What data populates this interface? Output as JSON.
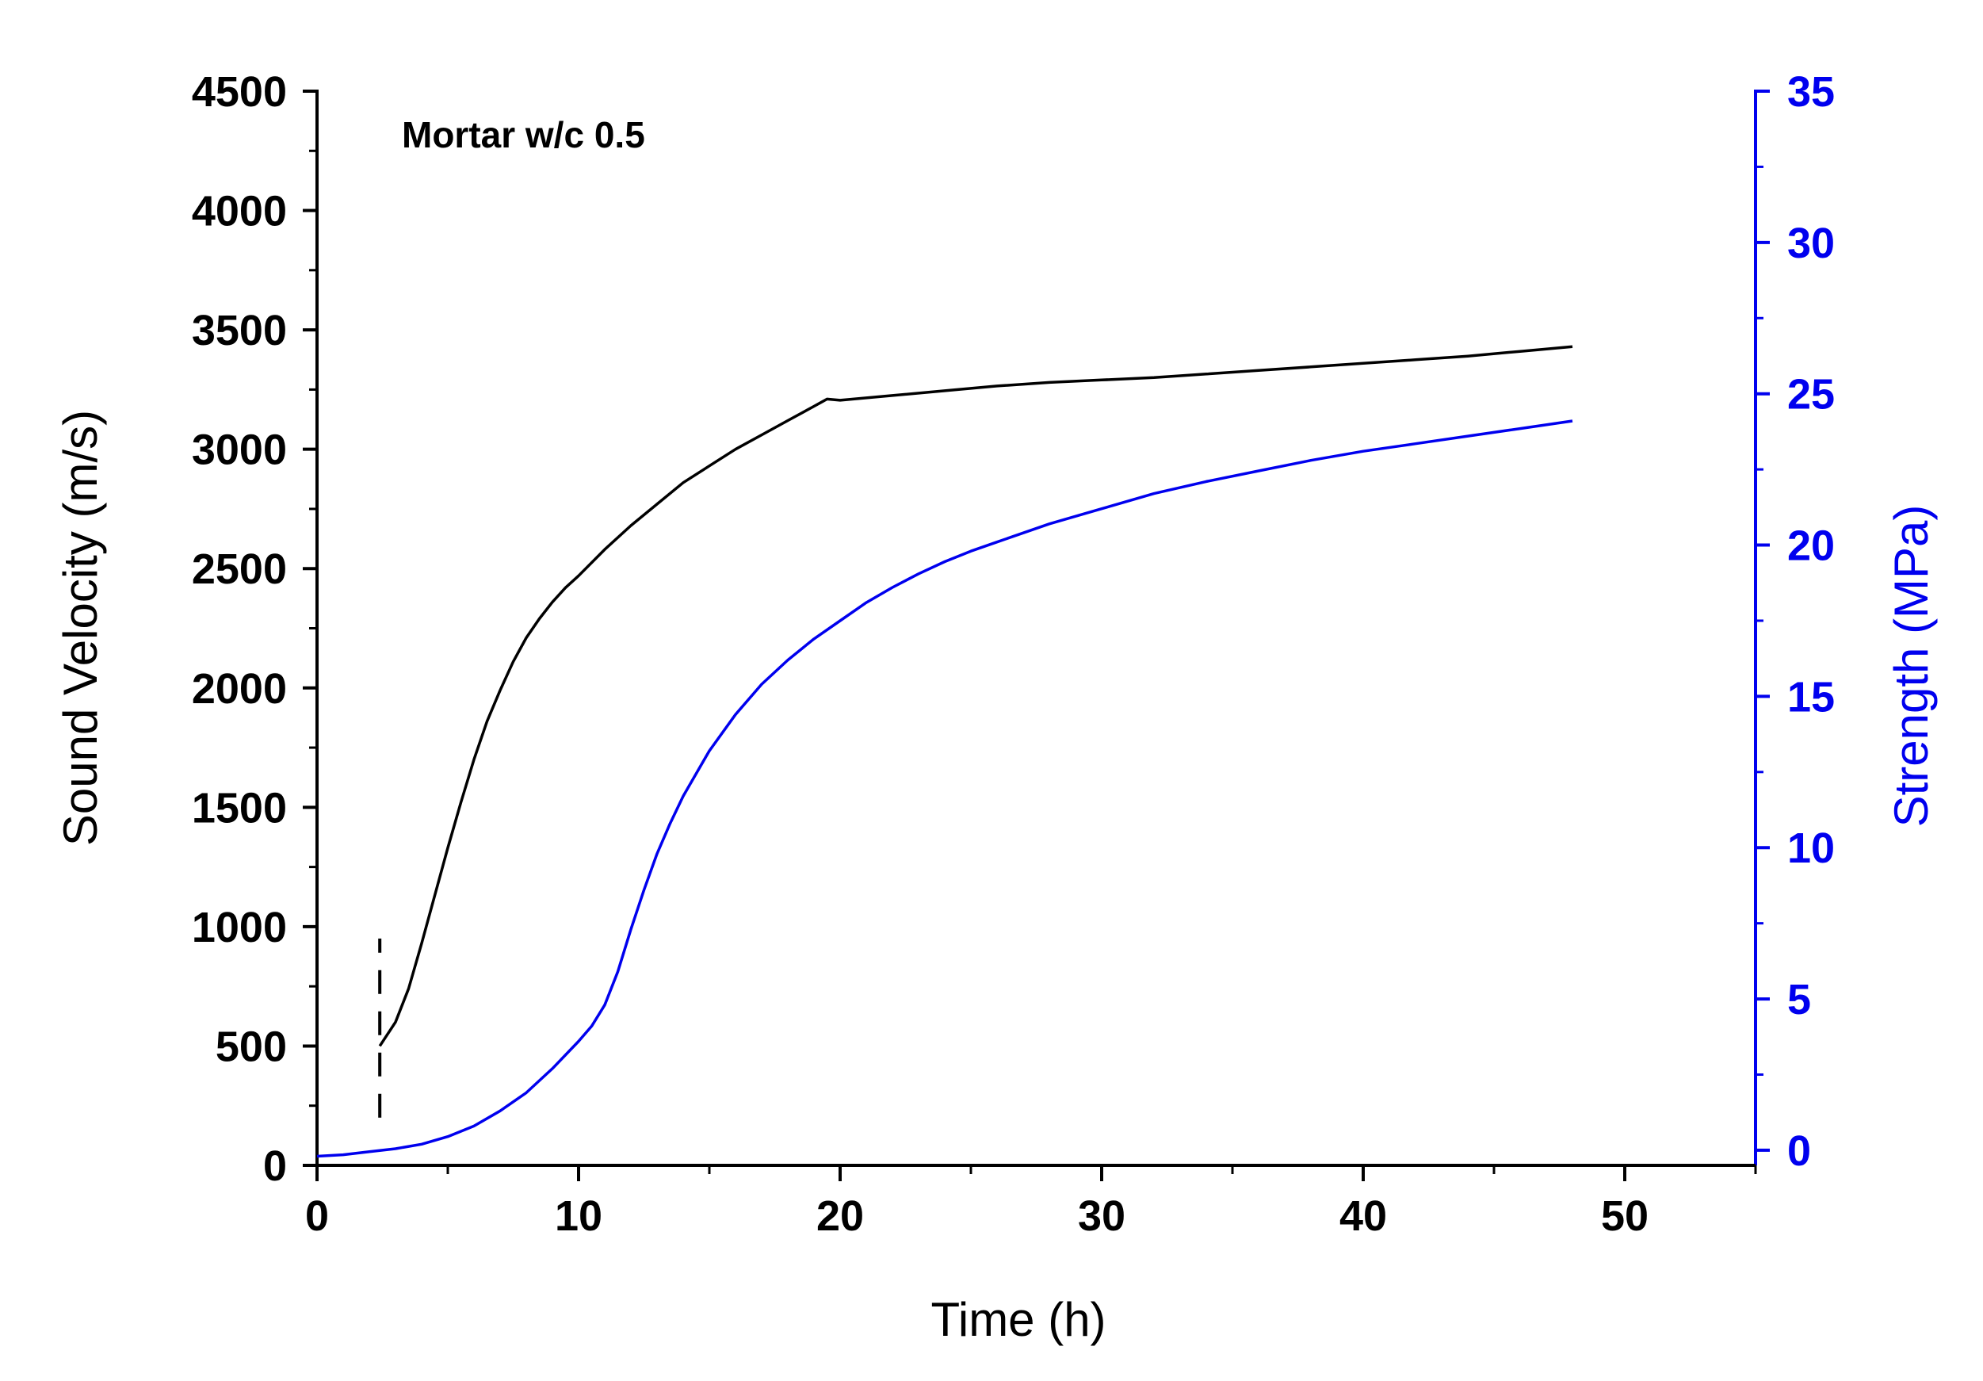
{
  "chart_data": {
    "type": "line",
    "title": "",
    "annotation": "Mortar w/c 0.5",
    "xlabel": "Time (h)",
    "ylabel": "Sound Velocity (m/s)",
    "y2label": "Strength (MPa)",
    "xlim": [
      0,
      55
    ],
    "ylim": [
      0,
      4500
    ],
    "y2lim": [
      -0.5,
      35
    ],
    "xticks": [
      0,
      10,
      20,
      30,
      40,
      50
    ],
    "xtick_labels": [
      "0",
      "10",
      "20",
      "30",
      "40",
      "50"
    ],
    "yticks": [
      0,
      500,
      1000,
      1500,
      2000,
      2500,
      3000,
      3500,
      4000,
      4500
    ],
    "ytick_labels": [
      "0",
      "500",
      "1000",
      "1500",
      "2000",
      "2500",
      "3000",
      "3500",
      "4000",
      "4500"
    ],
    "y2ticks": [
      0,
      5,
      10,
      15,
      20,
      25,
      30,
      35
    ],
    "y2tick_labels": [
      "0",
      "5",
      "10",
      "15",
      "20",
      "25",
      "30",
      "35"
    ],
    "grid": false,
    "series": [
      {
        "name": "Sound Velocity",
        "axis": "left",
        "color": "#000000",
        "x": [
          2.4,
          3.0,
          3.5,
          4.0,
          4.5,
          5.0,
          5.5,
          6.0,
          6.5,
          7.0,
          7.5,
          8.0,
          8.5,
          9.0,
          9.5,
          10.0,
          11.0,
          12.0,
          13.0,
          14.0,
          15.0,
          16.0,
          17.0,
          18.0,
          19.0,
          19.5,
          20.0,
          22.0,
          24.0,
          26.0,
          28.0,
          30.0,
          32.0,
          34.0,
          36.0,
          38.0,
          40.0,
          42.0,
          44.0,
          46.0,
          48.0
        ],
        "y": [
          500,
          600,
          740,
          930,
          1130,
          1330,
          1520,
          1700,
          1860,
          1990,
          2110,
          2210,
          2290,
          2360,
          2420,
          2470,
          2580,
          2680,
          2770,
          2860,
          2930,
          3000,
          3060,
          3120,
          3180,
          3210,
          3205,
          3225,
          3245,
          3265,
          3280,
          3290,
          3300,
          3315,
          3330,
          3345,
          3360,
          3375,
          3390,
          3410,
          3430
        ]
      },
      {
        "name": "Strength",
        "axis": "right",
        "color": "#0000ee",
        "x": [
          0,
          1,
          2,
          3,
          4,
          5,
          6,
          7,
          8,
          9,
          10,
          10.5,
          11,
          11.5,
          12,
          12.5,
          13,
          13.5,
          14,
          15,
          16,
          17,
          18,
          19,
          20,
          21,
          22,
          23,
          24,
          25,
          26,
          28,
          30,
          32,
          34,
          36,
          38,
          40,
          42,
          44,
          46,
          48
        ],
        "y": [
          -0.2,
          -0.15,
          -0.05,
          0.05,
          0.2,
          0.45,
          0.8,
          1.3,
          1.9,
          2.7,
          3.6,
          4.1,
          4.8,
          5.9,
          7.3,
          8.6,
          9.8,
          10.8,
          11.7,
          13.2,
          14.4,
          15.4,
          16.2,
          16.9,
          17.5,
          18.1,
          18.6,
          19.05,
          19.45,
          19.8,
          20.1,
          20.7,
          21.2,
          21.7,
          22.1,
          22.45,
          22.8,
          23.1,
          23.35,
          23.6,
          23.85,
          24.1
        ]
      },
      {
        "name": "marker",
        "axis": "left",
        "color": "#000000",
        "style": "dashed",
        "x": [
          2.4,
          2.4
        ],
        "y": [
          200,
          950
        ]
      }
    ]
  }
}
